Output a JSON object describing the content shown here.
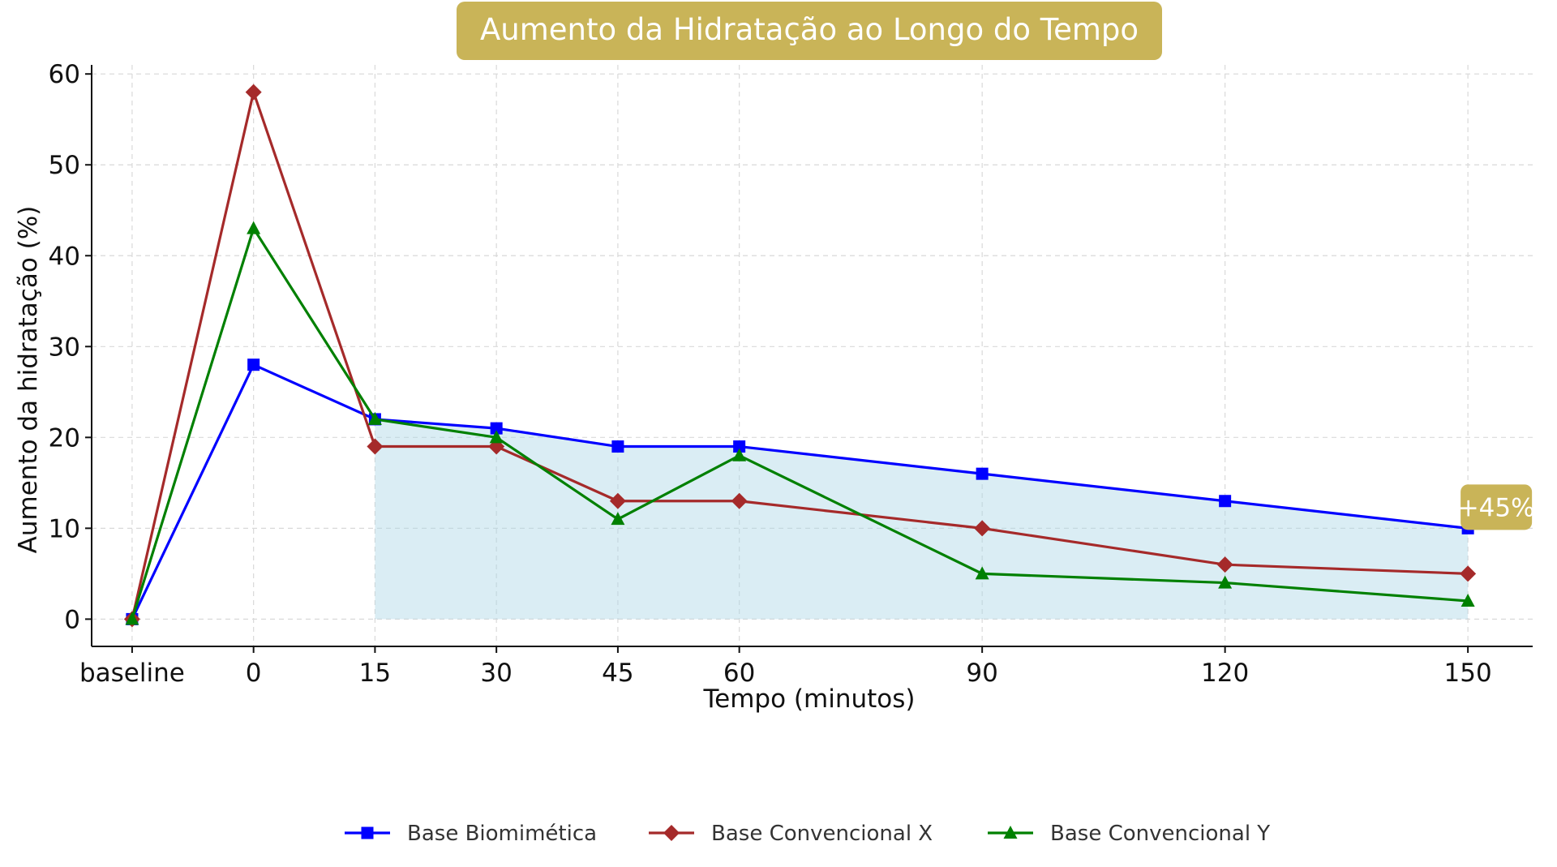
{
  "chart_data": {
    "type": "line",
    "title": "Aumento da Hidratação ao Longo do Tempo",
    "xlabel": "Tempo (minutos)",
    "ylabel": "Aumento da hidratação (%)",
    "categories": [
      "baseline",
      "0",
      "15",
      "30",
      "45",
      "60",
      "90",
      "120",
      "150"
    ],
    "x": [
      -15,
      0,
      15,
      30,
      45,
      60,
      90,
      120,
      150
    ],
    "ylim": [
      -3,
      61
    ],
    "yticks": [
      0,
      10,
      20,
      30,
      40,
      50,
      60
    ],
    "grid": true,
    "legend_position": "bottom-center",
    "series": [
      {
        "name": "Base Biomimética",
        "color": "#0000ff",
        "marker": "square",
        "values": [
          0,
          28,
          22,
          21,
          19,
          19,
          16,
          13,
          10
        ]
      },
      {
        "name": "Base Convencional X",
        "color": "#a52a2a",
        "marker": "diamond",
        "values": [
          0,
          58,
          19,
          19,
          13,
          13,
          10,
          6,
          5
        ]
      },
      {
        "name": "Base Convencional Y",
        "color": "#008000",
        "marker": "triangle",
        "values": [
          0,
          43,
          22,
          20,
          11,
          18,
          5,
          4,
          2
        ]
      }
    ],
    "shaded_area": {
      "series": "Base Biomimética",
      "from_x": 15,
      "to_x": 150,
      "color": "#add8e6"
    },
    "annotation": {
      "text": "+45%",
      "x": 150,
      "y": 10,
      "color": "#c9b458"
    },
    "title_box_color": "#c9b458"
  }
}
